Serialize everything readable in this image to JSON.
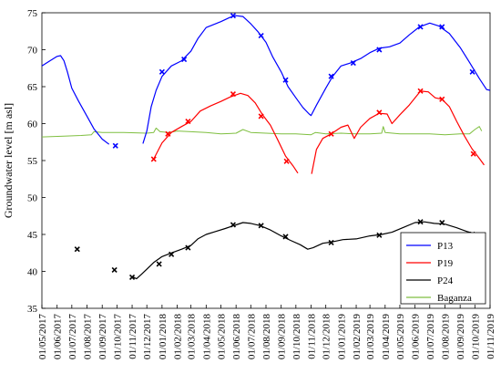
{
  "chart_data": {
    "type": "line",
    "title": "",
    "xlabel": "",
    "ylabel": "Groundwater level [m asl]",
    "xlim": [
      "2017-05-01",
      "2019-11-01"
    ],
    "ylim": [
      35,
      75
    ],
    "y_ticks": [
      35,
      40,
      45,
      50,
      55,
      60,
      65,
      70,
      75
    ],
    "x_ticks": [
      "01/05/2017",
      "01/06/2017",
      "01/07/2017",
      "01/08/2017",
      "01/09/2017",
      "01/10/2017",
      "01/11/2017",
      "01/12/2017",
      "01/01/2018",
      "01/02/2018",
      "01/03/2018",
      "01/04/2018",
      "01/05/2018",
      "01/06/2018",
      "01/07/2018",
      "01/08/2018",
      "01/09/2018",
      "01/10/2018",
      "01/11/2018",
      "01/12/2018",
      "01/01/2019",
      "01/02/2019",
      "01/03/2019",
      "01/04/2019",
      "01/05/2019",
      "01/06/2019",
      "01/07/2019",
      "01/08/2019",
      "01/09/2019",
      "01/10/2019",
      "01/11/2019"
    ],
    "grid": false,
    "legend_position": "bottom-right",
    "series": [
      {
        "name": "P13",
        "color": "#0000ff",
        "line": [
          [
            "2017-05-01",
            67.8
          ],
          [
            "2017-05-15",
            68.4
          ],
          [
            "2017-06-01",
            69.1
          ],
          [
            "2017-06-08",
            69.2
          ],
          [
            "2017-06-15",
            68.5
          ],
          [
            "2017-06-22",
            67.0
          ],
          [
            "2017-07-01",
            64.8
          ],
          [
            "2017-07-15",
            63.0
          ],
          [
            "2017-08-01",
            61.0
          ],
          [
            "2017-08-15",
            59.3
          ],
          [
            "2017-09-01",
            57.9
          ],
          [
            "2017-09-15",
            57.2
          ],
          null,
          [
            "2017-11-23",
            57.3
          ],
          [
            "2017-12-01",
            59.0
          ],
          [
            "2017-12-10",
            62.3
          ],
          [
            "2017-12-20",
            64.5
          ],
          [
            "2018-01-01",
            66.4
          ],
          [
            "2018-01-20",
            67.8
          ],
          [
            "2018-02-10",
            68.5
          ],
          [
            "2018-03-01",
            69.8
          ],
          [
            "2018-03-15",
            71.5
          ],
          [
            "2018-04-01",
            73.0
          ],
          [
            "2018-04-20",
            73.5
          ],
          [
            "2018-05-01",
            73.8
          ],
          [
            "2018-05-20",
            74.4
          ],
          [
            "2018-06-01",
            74.6
          ],
          [
            "2018-06-15",
            74.5
          ],
          [
            "2018-07-01",
            73.5
          ],
          [
            "2018-07-15",
            72.5
          ],
          [
            "2018-08-01",
            71.0
          ],
          [
            "2018-08-15",
            69.0
          ],
          [
            "2018-09-01",
            67.0
          ],
          [
            "2018-09-15",
            65.0
          ],
          [
            "2018-10-01",
            63.5
          ],
          [
            "2018-10-15",
            62.2
          ],
          [
            "2018-10-28",
            61.3
          ],
          [
            "2018-11-01",
            61.1
          ],
          [
            "2018-11-12",
            62.5
          ],
          [
            "2018-12-01",
            64.8
          ],
          [
            "2018-12-15",
            66.4
          ],
          [
            "2019-01-01",
            67.8
          ],
          [
            "2019-01-20",
            68.2
          ],
          [
            "2019-02-10",
            68.8
          ],
          [
            "2019-03-01",
            69.6
          ],
          [
            "2019-03-20",
            70.2
          ],
          [
            "2019-04-10",
            70.4
          ],
          [
            "2019-05-01",
            70.9
          ],
          [
            "2019-05-20",
            72.0
          ],
          [
            "2019-06-10",
            73.1
          ],
          [
            "2019-07-01",
            73.6
          ],
          [
            "2019-07-20",
            73.2
          ],
          [
            "2019-08-10",
            72.2
          ],
          [
            "2019-09-01",
            70.3
          ],
          [
            "2019-09-20",
            68.3
          ],
          [
            "2019-10-10",
            66.1
          ],
          [
            "2019-10-25",
            64.6
          ],
          [
            "2019-11-01",
            64.5
          ]
        ],
        "markers": [
          [
            "2017-09-28",
            57.0
          ],
          [
            "2018-01-01",
            67.0
          ],
          [
            "2018-02-15",
            68.7
          ],
          [
            "2018-05-26",
            74.6
          ],
          [
            "2018-07-22",
            71.9
          ],
          [
            "2018-09-10",
            65.9
          ],
          [
            "2018-12-12",
            66.4
          ],
          [
            "2019-01-26",
            68.2
          ],
          [
            "2019-03-20",
            70.0
          ],
          [
            "2019-06-12",
            73.1
          ],
          [
            "2019-07-26",
            73.1
          ],
          [
            "2019-09-26",
            67.0
          ]
        ]
      },
      {
        "name": "P19",
        "color": "#ff0000",
        "line": [
          [
            "2017-12-15",
            55.2
          ],
          [
            "2018-01-01",
            57.4
          ],
          [
            "2018-01-20",
            58.8
          ],
          [
            "2018-02-10",
            59.6
          ],
          [
            "2018-03-01",
            60.3
          ],
          [
            "2018-03-20",
            61.7
          ],
          [
            "2018-04-10",
            62.4
          ],
          [
            "2018-05-01",
            63.0
          ],
          [
            "2018-05-20",
            63.6
          ],
          [
            "2018-06-10",
            64.1
          ],
          [
            "2018-06-25",
            63.8
          ],
          [
            "2018-07-10",
            62.8
          ],
          [
            "2018-07-25",
            61.2
          ],
          [
            "2018-08-10",
            59.8
          ],
          [
            "2018-08-25",
            57.8
          ],
          [
            "2018-09-10",
            55.6
          ],
          [
            "2018-09-25",
            54.3
          ],
          [
            "2018-10-05",
            53.3
          ],
          null,
          [
            "2018-11-02",
            53.2
          ],
          [
            "2018-11-12",
            56.5
          ],
          [
            "2018-11-25",
            58.0
          ],
          [
            "2018-12-12",
            58.6
          ],
          [
            "2019-01-01",
            59.5
          ],
          [
            "2019-01-15",
            59.8
          ],
          [
            "2019-01-28",
            58.0
          ],
          [
            "2019-02-10",
            59.5
          ],
          [
            "2019-03-01",
            60.7
          ],
          [
            "2019-03-20",
            61.4
          ],
          [
            "2019-04-05",
            61.3
          ],
          [
            "2019-04-15",
            60.0
          ],
          [
            "2019-05-01",
            61.2
          ],
          [
            "2019-05-20",
            62.5
          ],
          [
            "2019-06-12",
            64.4
          ],
          [
            "2019-06-28",
            64.3
          ],
          [
            "2019-07-12",
            63.5
          ],
          [
            "2019-07-26",
            63.3
          ],
          [
            "2019-08-10",
            62.3
          ],
          [
            "2019-08-25",
            60.3
          ],
          [
            "2019-09-10",
            58.3
          ],
          [
            "2019-09-25",
            56.6
          ],
          [
            "2019-10-10",
            55.3
          ],
          [
            "2019-10-20",
            54.4
          ]
        ],
        "markers": [
          [
            "2017-12-15",
            55.2
          ],
          [
            "2018-01-13",
            58.6
          ],
          [
            "2018-02-23",
            60.3
          ],
          [
            "2018-05-26",
            64.0
          ],
          [
            "2018-07-22",
            61.0
          ],
          [
            "2018-09-12",
            54.9
          ],
          [
            "2018-12-12",
            58.6
          ],
          [
            "2019-03-20",
            61.5
          ],
          [
            "2019-06-12",
            64.4
          ],
          [
            "2019-07-26",
            63.3
          ],
          [
            "2019-09-28",
            55.9
          ]
        ]
      },
      {
        "name": "P24",
        "color": "#000000",
        "line": [
          [
            "2017-11-01",
            39.3
          ],
          [
            "2017-11-10",
            39.0
          ],
          [
            "2017-11-20",
            39.6
          ],
          [
            "2017-12-01",
            40.3
          ],
          [
            "2017-12-15",
            41.2
          ],
          [
            "2018-01-01",
            42.0
          ],
          [
            "2018-01-20",
            42.5
          ],
          [
            "2018-02-10",
            43.0
          ],
          [
            "2018-03-01",
            43.5
          ],
          [
            "2018-03-15",
            44.4
          ],
          [
            "2018-04-01",
            45.0
          ],
          [
            "2018-04-20",
            45.4
          ],
          [
            "2018-05-10",
            45.8
          ],
          [
            "2018-06-01",
            46.3
          ],
          [
            "2018-06-15",
            46.6
          ],
          [
            "2018-07-01",
            46.5
          ],
          [
            "2018-07-20",
            46.2
          ],
          [
            "2018-08-10",
            45.6
          ],
          [
            "2018-09-01",
            44.8
          ],
          [
            "2018-09-20",
            44.2
          ],
          [
            "2018-10-10",
            43.6
          ],
          [
            "2018-10-25",
            43.0
          ],
          [
            "2018-11-05",
            43.2
          ],
          [
            "2018-11-25",
            43.8
          ],
          [
            "2018-12-15",
            44.0
          ],
          [
            "2019-01-05",
            44.3
          ],
          [
            "2019-02-01",
            44.4
          ],
          [
            "2019-03-01",
            44.8
          ],
          [
            "2019-03-25",
            45.0
          ],
          [
            "2019-04-15",
            45.3
          ],
          [
            "2019-05-10",
            46.0
          ],
          [
            "2019-06-01",
            46.6
          ],
          [
            "2019-06-20",
            46.7
          ],
          [
            "2019-07-10",
            46.5
          ],
          [
            "2019-08-01",
            46.4
          ],
          [
            "2019-08-25",
            45.9
          ],
          [
            "2019-09-15",
            45.4
          ],
          [
            "2019-10-01",
            45.1
          ],
          [
            "2019-10-15",
            44.7
          ]
        ],
        "markers": [
          [
            "2017-07-12",
            43.0
          ],
          [
            "2017-09-26",
            40.2
          ],
          [
            "2017-11-01",
            39.2
          ],
          [
            "2017-12-26",
            41.0
          ],
          [
            "2018-01-20",
            42.3
          ],
          [
            "2018-02-23",
            43.2
          ],
          [
            "2018-05-26",
            46.3
          ],
          [
            "2018-07-22",
            46.2
          ],
          [
            "2018-09-10",
            44.7
          ],
          [
            "2018-12-12",
            43.9
          ],
          [
            "2019-03-20",
            44.9
          ],
          [
            "2019-06-12",
            46.7
          ],
          [
            "2019-07-26",
            46.6
          ],
          [
            "2019-09-26",
            45.0
          ]
        ]
      },
      {
        "name": "Baganza",
        "color": "#7fbf40",
        "line": [
          [
            "2017-05-01",
            58.2
          ],
          [
            "2017-06-15",
            58.3
          ],
          [
            "2017-07-20",
            58.4
          ],
          [
            "2017-08-10",
            58.5
          ],
          [
            "2017-08-15",
            58.9
          ],
          [
            "2017-09-01",
            58.8
          ],
          [
            "2017-10-15",
            58.8
          ],
          [
            "2017-12-01",
            58.7
          ],
          [
            "2017-12-15",
            58.8
          ],
          [
            "2017-12-20",
            59.4
          ],
          [
            "2017-12-28",
            58.9
          ],
          [
            "2018-01-15",
            58.8
          ],
          [
            "2018-02-01",
            59.0
          ],
          [
            "2018-03-01",
            58.9
          ],
          [
            "2018-04-01",
            58.8
          ],
          [
            "2018-05-01",
            58.6
          ],
          [
            "2018-06-01",
            58.7
          ],
          [
            "2018-06-15",
            59.2
          ],
          [
            "2018-07-01",
            58.8
          ],
          [
            "2018-08-01",
            58.7
          ],
          [
            "2018-09-01",
            58.6
          ],
          [
            "2018-10-01",
            58.6
          ],
          [
            "2018-11-01",
            58.5
          ],
          [
            "2018-11-10",
            58.8
          ],
          [
            "2018-12-01",
            58.6
          ],
          [
            "2019-01-01",
            58.7
          ],
          [
            "2019-02-01",
            58.6
          ],
          [
            "2019-03-01",
            58.6
          ],
          [
            "2019-03-25",
            58.7
          ],
          [
            "2019-03-28",
            59.6
          ],
          [
            "2019-04-01",
            58.8
          ],
          [
            "2019-05-01",
            58.6
          ],
          [
            "2019-06-01",
            58.6
          ],
          [
            "2019-07-01",
            58.6
          ],
          [
            "2019-08-01",
            58.5
          ],
          [
            "2019-09-01",
            58.6
          ],
          [
            "2019-09-20",
            58.6
          ],
          [
            "2019-10-01",
            59.2
          ],
          [
            "2019-10-10",
            59.6
          ],
          [
            "2019-10-15",
            59.0
          ]
        ],
        "markers": []
      }
    ]
  }
}
